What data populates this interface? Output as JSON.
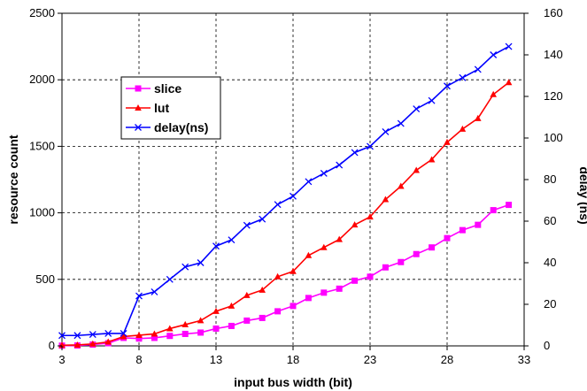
{
  "chart_data": {
    "type": "line",
    "xlabel": "input bus width (bit)",
    "ylabel": "resource count",
    "y2label": "delay (ns)",
    "xlim": [
      3,
      33
    ],
    "ylim": [
      0,
      2500
    ],
    "y2lim": [
      0,
      160
    ],
    "xticks": [
      3,
      8,
      13,
      18,
      23,
      28,
      33
    ],
    "yticks": [
      0,
      500,
      1000,
      1500,
      2000,
      2500
    ],
    "y2ticks": [
      0,
      20,
      40,
      60,
      80,
      100,
      120,
      140,
      160
    ],
    "grid": true,
    "legend_position": "left",
    "x": [
      3,
      4,
      5,
      6,
      7,
      8,
      9,
      10,
      11,
      12,
      13,
      14,
      15,
      16,
      17,
      18,
      19,
      20,
      21,
      22,
      23,
      24,
      25,
      26,
      27,
      28,
      29,
      30,
      31,
      32
    ],
    "series": [
      {
        "name": "slice",
        "axis": "left",
        "color": "#ff00ff",
        "marker": "square",
        "values": [
          2,
          3,
          10,
          20,
          60,
          55,
          60,
          75,
          90,
          100,
          130,
          150,
          190,
          210,
          260,
          300,
          360,
          400,
          430,
          490,
          520,
          590,
          630,
          690,
          740,
          810,
          870,
          910,
          1020,
          1060
        ]
      },
      {
        "name": "lut",
        "axis": "left",
        "color": "#ff0000",
        "marker": "triangle",
        "values": [
          5,
          7,
          15,
          30,
          70,
          80,
          90,
          130,
          160,
          190,
          260,
          300,
          380,
          420,
          520,
          560,
          680,
          740,
          800,
          910,
          970,
          1100,
          1200,
          1320,
          1400,
          1530,
          1630,
          1710,
          1890,
          1980
        ]
      },
      {
        "name": "delay(ns)",
        "axis": "right",
        "color": "#0000ff",
        "marker": "x",
        "values": [
          5,
          5,
          5.5,
          6,
          6,
          24,
          26,
          32,
          38,
          40,
          48,
          51,
          58,
          61,
          68,
          72,
          79,
          83,
          87,
          93,
          96,
          103,
          107,
          114,
          118,
          125,
          129,
          133,
          140,
          144
        ]
      }
    ]
  }
}
